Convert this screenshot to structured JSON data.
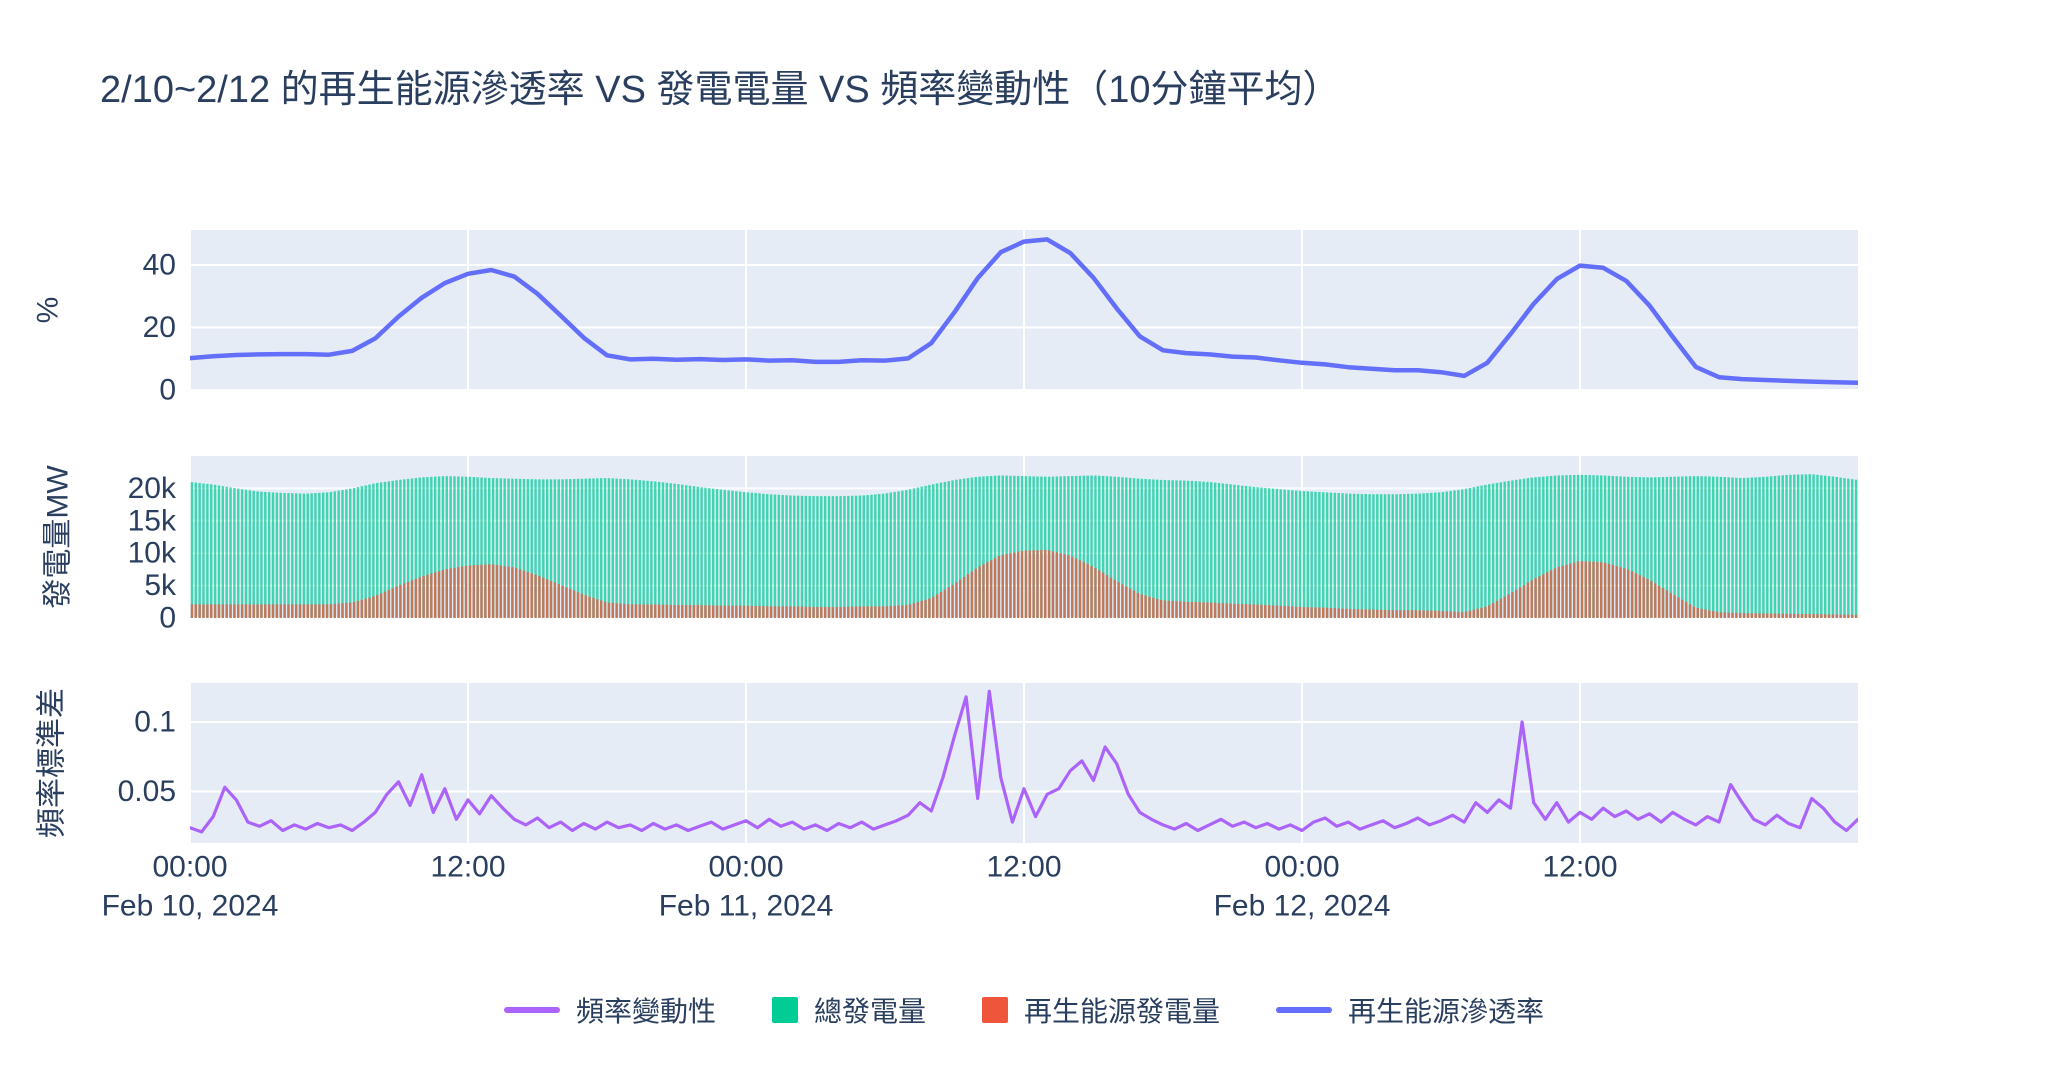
{
  "title": "2/10~2/12 的再生能源滲透率 VS 發電電量 VS 頻率變動性（10分鐘平均）",
  "colors": {
    "background": "#ffffff",
    "plot_background": "#e5ecf6",
    "grid": "#ffffff",
    "font": "#2a3f5f",
    "penetration_line": "#636efa",
    "total_generation_bar": "#00cc96",
    "renewable_generation_bar": "#ef553b",
    "frequency_line": "#ab63fa"
  },
  "x_axis": {
    "range_hours": [
      0,
      72
    ],
    "tick_hours": [
      0,
      12,
      24,
      36,
      48,
      60
    ],
    "tick_labels": [
      "00:00",
      "12:00",
      "00:00",
      "12:00",
      "00:00",
      "12:00"
    ],
    "date_ticks": [
      {
        "hour": 0,
        "label": "Feb 10, 2024"
      },
      {
        "hour": 24,
        "label": "Feb 11, 2024"
      },
      {
        "hour": 48,
        "label": "Feb 12, 2024"
      }
    ]
  },
  "chart_data": [
    {
      "id": "penetration",
      "type": "line",
      "name": "再生能源滲透率",
      "color": "#636efa",
      "ylabel": "%",
      "ytick_values": [
        0,
        20,
        40
      ],
      "ytick_labels": [
        "0",
        "20",
        "40"
      ],
      "ylim": [
        0,
        51.2
      ],
      "x_start_hour": 0,
      "x_step_hours": 1,
      "values": [
        10.2,
        10.8,
        11.2,
        11.4,
        11.5,
        11.5,
        11.3,
        12.5,
        16.5,
        23.5,
        29.5,
        34.2,
        37.2,
        38.4,
        36.3,
        30.8,
        23.8,
        16.7,
        11.1,
        9.8,
        10.0,
        9.7,
        9.9,
        9.6,
        9.8,
        9.4,
        9.5,
        9.0,
        9.0,
        9.5,
        9.4,
        10.1,
        15.0,
        24.9,
        35.8,
        44.1,
        47.5,
        48.2,
        43.8,
        35.9,
        26.1,
        17.2,
        12.7,
        11.8,
        11.4,
        10.7,
        10.4,
        9.5,
        8.7,
        8.2,
        7.3,
        6.8,
        6.3,
        6.3,
        5.7,
        4.5,
        8.7,
        17.9,
        27.6,
        35.5,
        39.8,
        39.1,
        34.9,
        27.0,
        17.0,
        7.4,
        4.1,
        3.5,
        3.2,
        2.9,
        2.7,
        2.5,
        2.3
      ]
    },
    {
      "id": "generation",
      "type": "bar",
      "ylabel": "發電量MW",
      "ytick_values": [
        0,
        5000,
        10000,
        15000,
        20000
      ],
      "ytick_labels": [
        "0",
        "5k",
        "10k",
        "15k",
        "20k"
      ],
      "ylim": [
        0,
        25000
      ],
      "x_start_hour": 0,
      "x_step_hours": 1,
      "bar_pitch_minutes": 10,
      "bar_opacity": 0.72,
      "series": [
        {
          "name": "總發電量",
          "color": "#00cc96",
          "values": [
            21000,
            20600,
            20000,
            19500,
            19300,
            19200,
            19400,
            20000,
            20800,
            21300,
            21700,
            21900,
            21800,
            21600,
            21500,
            21400,
            21400,
            21500,
            21600,
            21400,
            21100,
            20700,
            20200,
            19800,
            19400,
            19100,
            18900,
            18800,
            18800,
            18900,
            19200,
            19800,
            20600,
            21300,
            21800,
            22000,
            21900,
            21800,
            21900,
            22000,
            21800,
            21500,
            21300,
            21200,
            21000,
            20600,
            20200,
            19900,
            19600,
            19400,
            19200,
            19100,
            19100,
            19200,
            19400,
            19900,
            20600,
            21200,
            21700,
            22000,
            22100,
            22000,
            21800,
            21700,
            21800,
            21900,
            21800,
            21600,
            21800,
            22100,
            22200,
            21800,
            21300
          ]
        },
        {
          "name": "再生能源發電量",
          "color": "#ef553b",
          "values": [
            2100,
            2100,
            2100,
            2100,
            2100,
            2100,
            2100,
            2400,
            3400,
            5000,
            6400,
            7500,
            8100,
            8300,
            7800,
            6600,
            5100,
            3600,
            2400,
            2100,
            2100,
            2000,
            2000,
            1900,
            1900,
            1800,
            1800,
            1700,
            1700,
            1800,
            1800,
            2000,
            3100,
            5300,
            7800,
            9700,
            10400,
            10500,
            9600,
            7900,
            5700,
            3700,
            2700,
            2500,
            2400,
            2200,
            2100,
            1900,
            1700,
            1600,
            1400,
            1300,
            1200,
            1200,
            1100,
            900,
            1800,
            3800,
            6000,
            7800,
            8800,
            8600,
            7600,
            5900,
            3700,
            1600,
            900,
            750,
            700,
            650,
            600,
            550,
            500
          ]
        }
      ]
    },
    {
      "id": "frequency",
      "type": "line",
      "name": "頻率變動性",
      "color": "#ab63fa",
      "ylabel": "頻率標準差",
      "ytick_values": [
        0.05,
        0.1
      ],
      "ytick_labels": [
        "0.05",
        "0.1"
      ],
      "ylim": [
        0.013,
        0.128
      ],
      "x_start_hour": 0,
      "x_step_hours": 0.5,
      "values": [
        0.024,
        0.021,
        0.032,
        0.053,
        0.044,
        0.028,
        0.025,
        0.029,
        0.022,
        0.026,
        0.023,
        0.027,
        0.024,
        0.026,
        0.022,
        0.028,
        0.035,
        0.048,
        0.057,
        0.04,
        0.062,
        0.035,
        0.052,
        0.03,
        0.044,
        0.034,
        0.047,
        0.038,
        0.03,
        0.026,
        0.031,
        0.024,
        0.028,
        0.022,
        0.027,
        0.023,
        0.028,
        0.024,
        0.026,
        0.022,
        0.027,
        0.023,
        0.026,
        0.022,
        0.025,
        0.028,
        0.023,
        0.026,
        0.029,
        0.024,
        0.03,
        0.025,
        0.028,
        0.023,
        0.026,
        0.022,
        0.027,
        0.024,
        0.028,
        0.023,
        0.026,
        0.029,
        0.033,
        0.042,
        0.036,
        0.06,
        0.09,
        0.118,
        0.045,
        0.122,
        0.06,
        0.028,
        0.052,
        0.032,
        0.048,
        0.052,
        0.065,
        0.072,
        0.058,
        0.082,
        0.07,
        0.048,
        0.035,
        0.03,
        0.026,
        0.023,
        0.027,
        0.022,
        0.026,
        0.03,
        0.025,
        0.028,
        0.024,
        0.027,
        0.023,
        0.026,
        0.022,
        0.028,
        0.031,
        0.025,
        0.028,
        0.023,
        0.026,
        0.029,
        0.024,
        0.027,
        0.031,
        0.026,
        0.029,
        0.033,
        0.028,
        0.042,
        0.035,
        0.044,
        0.038,
        0.1,
        0.042,
        0.03,
        0.042,
        0.028,
        0.035,
        0.03,
        0.038,
        0.032,
        0.036,
        0.03,
        0.034,
        0.028,
        0.035,
        0.03,
        0.026,
        0.032,
        0.028,
        0.055,
        0.042,
        0.03,
        0.026,
        0.033,
        0.027,
        0.024,
        0.045,
        0.038,
        0.028,
        0.022,
        0.03
      ]
    }
  ],
  "legend": {
    "items": [
      {
        "label": "頻率變動性",
        "swatch": "line",
        "color": "#ab63fa"
      },
      {
        "label": "總發電量",
        "swatch": "square",
        "color": "#00cc96"
      },
      {
        "label": "再生能源發電量",
        "swatch": "square",
        "color": "#ef553b"
      },
      {
        "label": "再生能源滲透率",
        "swatch": "line",
        "color": "#636efa"
      }
    ]
  }
}
